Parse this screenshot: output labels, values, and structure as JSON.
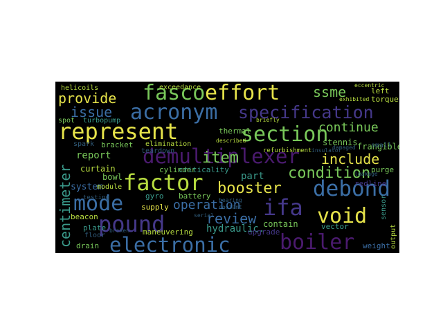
{
  "palette": {
    "yellow": "#e6e34a",
    "green": "#79c85a",
    "teal": "#3a9a8b",
    "blue": "#3b6ea5",
    "indigo": "#45388a",
    "purple": "#4a1a6e",
    "lime": "#b8dd40",
    "dim": "#2f5a78"
  },
  "words": [
    {
      "id": "fasco",
      "text": "fasco"
    },
    {
      "id": "effort",
      "text": "effort"
    },
    {
      "id": "ssme",
      "text": "ssme"
    },
    {
      "id": "acronym",
      "text": "acronym"
    },
    {
      "id": "specification",
      "text": "specification"
    },
    {
      "id": "represent",
      "text": "represent"
    },
    {
      "id": "section",
      "text": "section"
    },
    {
      "id": "demultiplexer",
      "text": "demultiplexer"
    },
    {
      "id": "factor",
      "text": "factor"
    },
    {
      "id": "debond",
      "text": "debond"
    },
    {
      "id": "mode",
      "text": "mode"
    },
    {
      "id": "ifa",
      "text": "ifa"
    },
    {
      "id": "pound",
      "text": "pound"
    },
    {
      "id": "void",
      "text": "void"
    },
    {
      "id": "electronic",
      "text": "electronic"
    },
    {
      "id": "boiler",
      "text": "boiler"
    },
    {
      "id": "booster",
      "text": "booster"
    },
    {
      "id": "condition",
      "text": "condition"
    },
    {
      "id": "item",
      "text": "item"
    },
    {
      "id": "issue",
      "text": "issue"
    },
    {
      "id": "provide",
      "text": "provide"
    },
    {
      "id": "continue",
      "text": "continue"
    },
    {
      "id": "include",
      "text": "include"
    },
    {
      "id": "operation",
      "text": "operation"
    },
    {
      "id": "review",
      "text": "review"
    },
    {
      "id": "centimeter",
      "text": "centimeter"
    },
    {
      "id": "report",
      "text": "report"
    },
    {
      "id": "curtain",
      "text": "curtain"
    },
    {
      "id": "system",
      "text": "system"
    },
    {
      "id": "bowl",
      "text": "bowl"
    },
    {
      "id": "gyro",
      "text": "gyro"
    },
    {
      "id": "battery",
      "text": "battery"
    },
    {
      "id": "supply",
      "text": "supply"
    },
    {
      "id": "beacon",
      "text": "beacon"
    },
    {
      "id": "plate",
      "text": "plate"
    },
    {
      "id": "floor",
      "text": "floor"
    },
    {
      "id": "drain",
      "text": "drain"
    },
    {
      "id": "maneuvering",
      "text": "maneuvering"
    },
    {
      "id": "hydraulic",
      "text": "hydraulic."
    },
    {
      "id": "contain",
      "text": "contain"
    },
    {
      "id": "upgrade",
      "text": "upgrade"
    },
    {
      "id": "part",
      "text": "part"
    },
    {
      "id": "thermal",
      "text": "thermal"
    },
    {
      "id": "frangible",
      "text": "frangible"
    },
    {
      "id": "stennis",
      "text": "stennis"
    },
    {
      "id": "left",
      "text": "left"
    },
    {
      "id": "torque",
      "text": "torque"
    },
    {
      "id": "exceedance",
      "text": "exceedance"
    },
    {
      "id": "helicoils",
      "text": "helicoils"
    },
    {
      "id": "spot",
      "text": "spot"
    },
    {
      "id": "turbopump",
      "text": "turbopump"
    },
    {
      "id": "bracket",
      "text": "bracket"
    },
    {
      "id": "module",
      "text": "module"
    },
    {
      "id": "spark",
      "text": "spark"
    },
    {
      "id": "teardown",
      "text": "teardown"
    },
    {
      "id": "elimination",
      "text": "elimination"
    },
    {
      "id": "cylinder",
      "text": "cylinder"
    },
    {
      "id": "criticality",
      "text": "criticality"
    },
    {
      "id": "redline",
      "text": "redline"
    },
    {
      "id": "purge",
      "text": "purge"
    },
    {
      "id": "vector",
      "text": "vector"
    },
    {
      "id": "output",
      "text": "output"
    },
    {
      "id": "weight",
      "text": "weight"
    },
    {
      "id": "sensor",
      "text": "sensor"
    },
    {
      "id": "eccentric",
      "text": "eccentric"
    },
    {
      "id": "small",
      "text": "small"
    },
    {
      "id": "briefly",
      "text": "briefly"
    },
    {
      "id": "refurbishment",
      "text": "refurbishment"
    },
    {
      "id": "exhibited",
      "text": "exhibited"
    },
    {
      "id": "described",
      "text": "described"
    },
    {
      "id": "serial",
      "text": "serial"
    },
    {
      "id": "broken",
      "text": "broken"
    },
    {
      "id": "leakage",
      "text": "leakage"
    },
    {
      "id": "insulator",
      "text": "insulator"
    },
    {
      "id": "damaged",
      "text": "damaged"
    },
    {
      "id": "bearing",
      "text": "bearing"
    },
    {
      "id": "coolant",
      "text": "coolant"
    },
    {
      "id": "testing",
      "text": "testing"
    }
  ]
}
